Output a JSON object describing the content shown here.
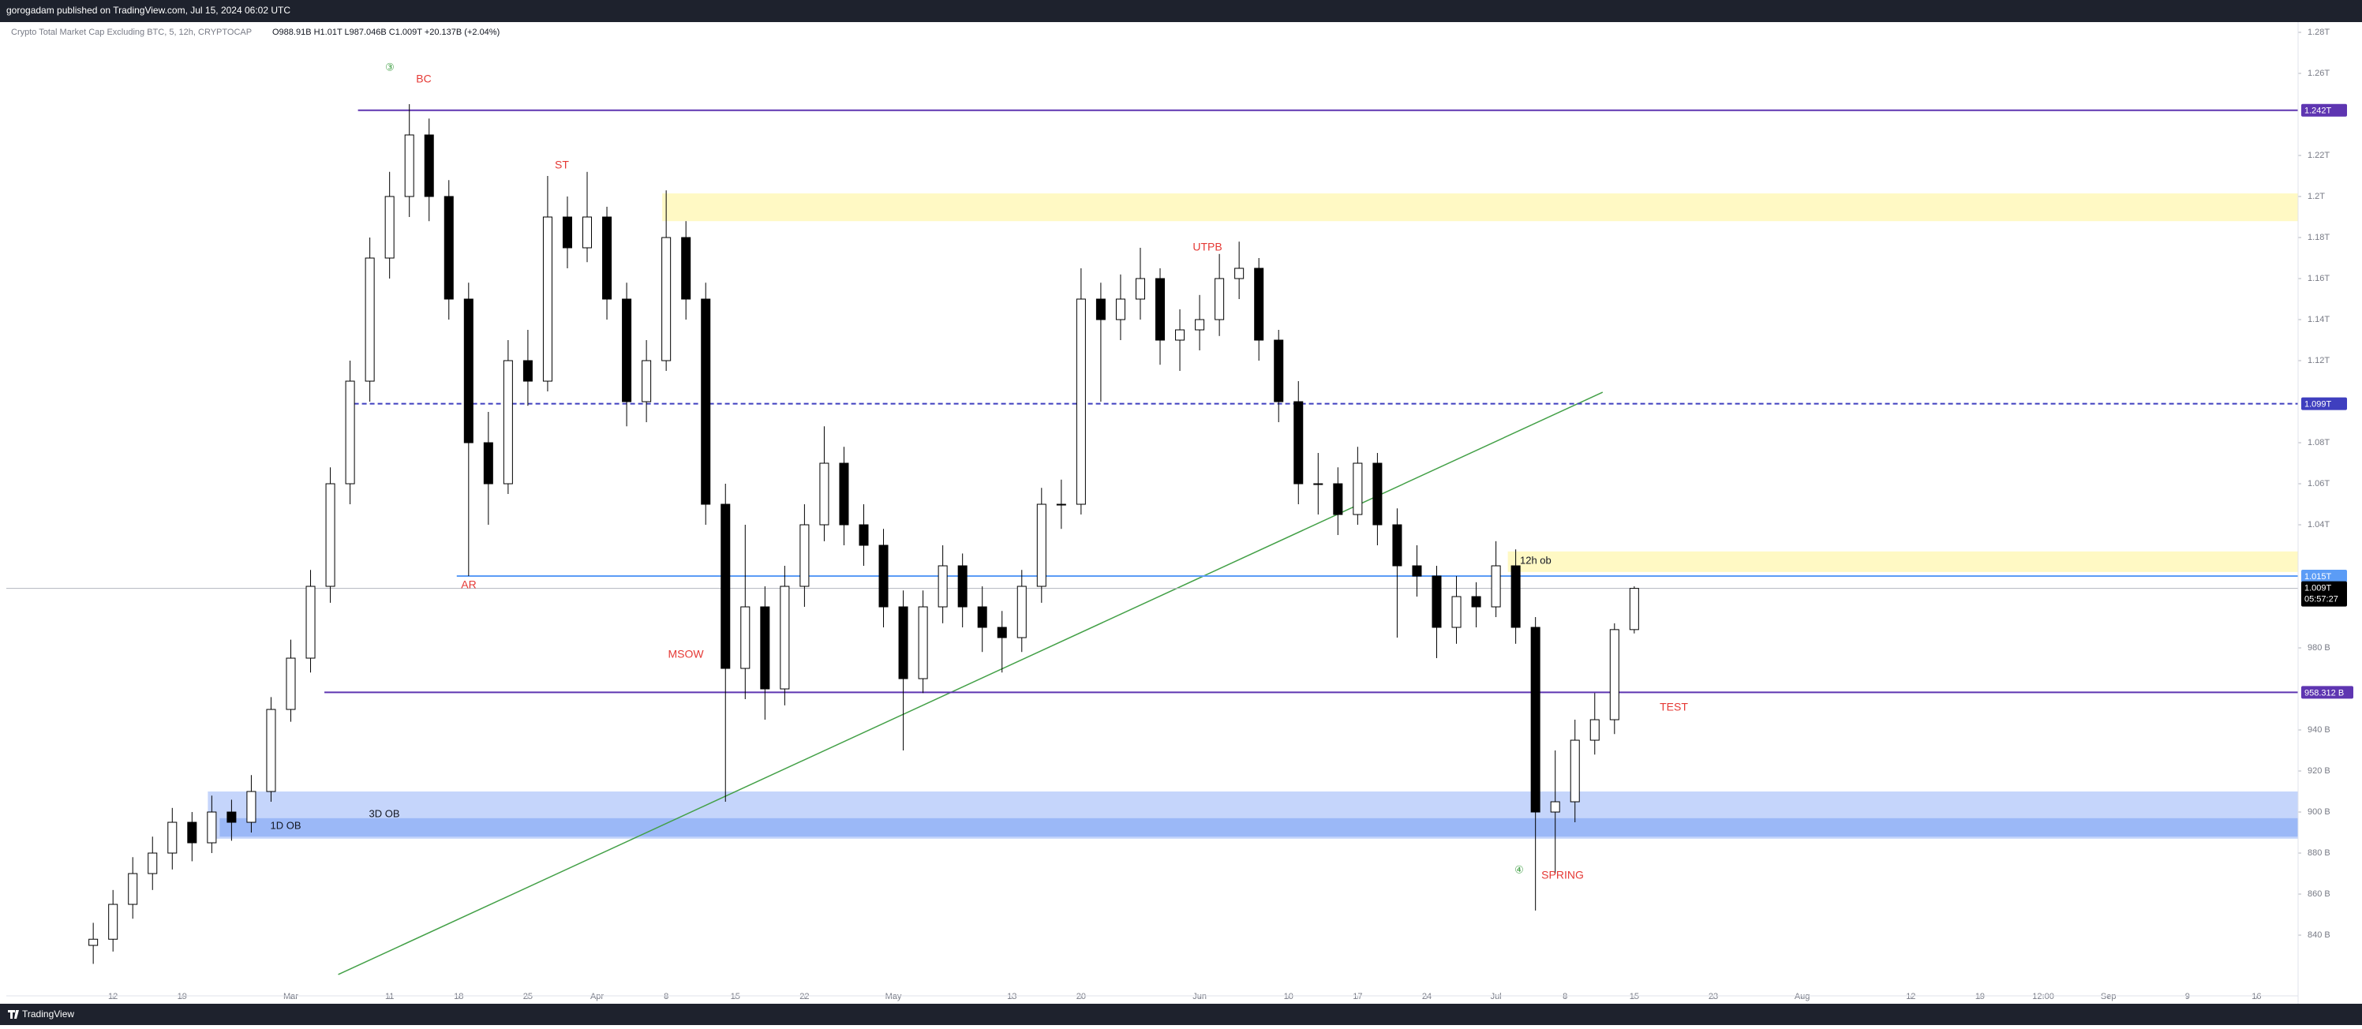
{
  "header": {
    "publisher": "gorogadam published on TradingView.com, Jul 15, 2024 06:02 UTC"
  },
  "chart_data": {
    "type": "candlestick",
    "legend_text": "Crypto Total Market Cap Excluding BTC, 5, 12h, CRYPTOCAP",
    "ohlc_text": "O988.91B H1.01T L987.046B C1.009T +20.137B (+2.04%)",
    "open": [
      835,
      838,
      855,
      870,
      880,
      895,
      885,
      900,
      895,
      910,
      950,
      975,
      1010,
      1060,
      1110,
      1170,
      1200,
      1230,
      1200,
      1150,
      1080,
      1060,
      1120,
      1110,
      1190,
      1175,
      1190,
      1150,
      1100,
      1120,
      1180,
      1150,
      1050,
      970,
      1000,
      960,
      1010,
      1040,
      1070,
      1040,
      1030,
      1000,
      965,
      1000,
      1020,
      1000,
      990,
      985,
      1010,
      1050,
      1050,
      1150,
      1140,
      1150,
      1160,
      1130,
      1135,
      1140,
      1160,
      1165,
      1130,
      1100,
      1060,
      1060,
      1045,
      1070,
      1040,
      1020,
      1015,
      990,
      1005,
      1000,
      1020,
      990,
      900,
      905,
      935,
      945,
      988.91
    ],
    "high": [
      846,
      862,
      878,
      888,
      902,
      900,
      908,
      906,
      918,
      956,
      984,
      1018,
      1068,
      1120,
      1180,
      1212,
      1245,
      1238,
      1208,
      1158,
      1095,
      1130,
      1135,
      1210,
      1200,
      1212,
      1195,
      1158,
      1130,
      1203,
      1188,
      1158,
      1060,
      1040,
      1010,
      1020,
      1050,
      1088,
      1078,
      1050,
      1038,
      1008,
      1008,
      1030,
      1026,
      1010,
      998,
      1018,
      1058,
      1062,
      1165,
      1158,
      1162,
      1175,
      1165,
      1145,
      1152,
      1172,
      1178,
      1170,
      1135,
      1110,
      1075,
      1068,
      1078,
      1075,
      1048,
      1030,
      1020,
      1015,
      1012,
      1032,
      1028,
      995,
      930,
      945,
      958,
      992,
      1010
    ],
    "low": [
      826,
      832,
      848,
      862,
      872,
      876,
      880,
      886,
      890,
      905,
      944,
      968,
      1002,
      1050,
      1100,
      1160,
      1190,
      1188,
      1140,
      1015,
      1040,
      1055,
      1098,
      1105,
      1165,
      1168,
      1140,
      1088,
      1090,
      1115,
      1140,
      1040,
      905,
      955,
      945,
      952,
      1000,
      1032,
      1030,
      1020,
      990,
      930,
      958,
      992,
      990,
      978,
      968,
      978,
      1002,
      1038,
      1045,
      1100,
      1130,
      1140,
      1118,
      1115,
      1125,
      1132,
      1150,
      1120,
      1090,
      1050,
      1045,
      1035,
      1040,
      1030,
      985,
      1005,
      975,
      982,
      990,
      995,
      982,
      852,
      870,
      895,
      928,
      938,
      987.046
    ],
    "close": [
      838,
      855,
      870,
      880,
      895,
      885,
      900,
      895,
      910,
      950,
      975,
      1010,
      1060,
      1110,
      1170,
      1200,
      1230,
      1200,
      1150,
      1080,
      1060,
      1120,
      1110,
      1190,
      1175,
      1190,
      1150,
      1100,
      1120,
      1180,
      1150,
      1050,
      970,
      1000,
      960,
      1010,
      1040,
      1070,
      1040,
      1030,
      1000,
      965,
      1000,
      1020,
      1000,
      990,
      985,
      1010,
      1050,
      1050,
      1150,
      1140,
      1150,
      1160,
      1130,
      1135,
      1140,
      1160,
      1165,
      1130,
      1100,
      1060,
      1060,
      1045,
      1070,
      1040,
      1020,
      1015,
      990,
      1005,
      1000,
      1020,
      990,
      900,
      905,
      935,
      945,
      988.91,
      1009
    ],
    "up_color": "#ffffff",
    "down_color": "#000000",
    "wick_color": "#000000",
    "xlim": [
      -4.4,
      111.6
    ],
    "xticks": [
      {
        "value": 1,
        "label": "12"
      },
      {
        "value": 4.5,
        "label": "19"
      },
      {
        "value": 10,
        "label": "Mar"
      },
      {
        "value": 15,
        "label": "11"
      },
      {
        "value": 18.5,
        "label": "18"
      },
      {
        "value": 22,
        "label": "25"
      },
      {
        "value": 25.5,
        "label": "Apr"
      },
      {
        "value": 29,
        "label": "8"
      },
      {
        "value": 32.5,
        "label": "15"
      },
      {
        "value": 36,
        "label": "22"
      },
      {
        "value": 40.5,
        "label": "May"
      },
      {
        "value": 46.5,
        "label": "13"
      },
      {
        "value": 50,
        "label": "20"
      },
      {
        "value": 56,
        "label": "Jun"
      },
      {
        "value": 60.5,
        "label": "10"
      },
      {
        "value": 64,
        "label": "17"
      },
      {
        "value": 67.5,
        "label": "24"
      },
      {
        "value": 71,
        "label": "Jul"
      },
      {
        "value": 74.5,
        "label": "8"
      },
      {
        "value": 78,
        "label": "15"
      },
      {
        "value": 82,
        "label": "23"
      },
      {
        "value": 86.5,
        "label": "Aug"
      },
      {
        "value": 92,
        "label": "12"
      },
      {
        "value": 95.5,
        "label": "19"
      },
      {
        "value": 98.7,
        "label": "12:00"
      },
      {
        "value": 102,
        "label": "Sep"
      },
      {
        "value": 106,
        "label": "9"
      },
      {
        "value": 109.5,
        "label": "16"
      }
    ],
    "ylim": [
      810.4,
      1285
    ],
    "yticks": [
      {
        "value": 840,
        "label": "840 B"
      },
      {
        "value": 860,
        "label": "860 B"
      },
      {
        "value": 880,
        "label": "880 B"
      },
      {
        "value": 900,
        "label": "900 B"
      },
      {
        "value": 920,
        "label": "920 B"
      },
      {
        "value": 940,
        "label": "940 B"
      },
      {
        "value": 980,
        "label": "980 B"
      },
      {
        "value": 1040,
        "label": "1.04T"
      },
      {
        "value": 1060,
        "label": "1.06T"
      },
      {
        "value": 1080,
        "label": "1.08T"
      },
      {
        "value": 1120,
        "label": "1.12T"
      },
      {
        "value": 1140,
        "label": "1.14T"
      },
      {
        "value": 1160,
        "label": "1.16T"
      },
      {
        "value": 1180,
        "label": "1.18T"
      },
      {
        "value": 1200,
        "label": "1.2T"
      },
      {
        "value": 1220,
        "label": "1.22T"
      },
      {
        "value": 1260,
        "label": "1.26T"
      },
      {
        "value": 1280,
        "label": "1.28T"
      }
    ],
    "zones": [
      {
        "low": 1188,
        "high": 1201.5,
        "start": 28.8,
        "color": "#fff9c4"
      },
      {
        "low": 1017,
        "high": 1027,
        "start": 71.6,
        "color": "#fff9c4"
      },
      {
        "low": 887,
        "high": 910,
        "start": 5.8,
        "color": "#c5d5fb"
      },
      {
        "low": 888,
        "high": 897,
        "start": 6.4,
        "color": "#9bb8f7"
      }
    ],
    "levels": [
      {
        "value": 1242,
        "label": "1.242T",
        "start": 13.4,
        "color": "#5e35b1",
        "dash": false
      },
      {
        "value": 1099,
        "label": "1.099T",
        "start": 12.8,
        "color": "#3f3fbf",
        "dash": true
      },
      {
        "value": 1015,
        "label": "1.015T",
        "start": 18.4,
        "color": "#5b9cf6",
        "dash": false
      },
      {
        "value": 958.312,
        "label": "958.312 B",
        "start": 11.7,
        "color": "#5e35b1",
        "dash": false
      }
    ],
    "last_price": {
      "value": 1009,
      "label": "1.009T",
      "countdown": "05:57:27"
    },
    "trendline": {
      "x": [
        12.4,
        76.4
      ],
      "y": [
        820.8,
        1104.6
      ],
      "color": "#43a047"
    },
    "annotations": {
      "c3": "③",
      "bc": "BC",
      "st": "ST",
      "ar": "AR",
      "msow": "MSOW",
      "utpb": "UTPB",
      "ob12h": "12h ob",
      "test": "TEST",
      "spring": "SPRING",
      "c4": "④",
      "ob3d": "3D OB",
      "ob1d": "1D OB"
    }
  },
  "footer": {
    "brand": "TradingView"
  }
}
